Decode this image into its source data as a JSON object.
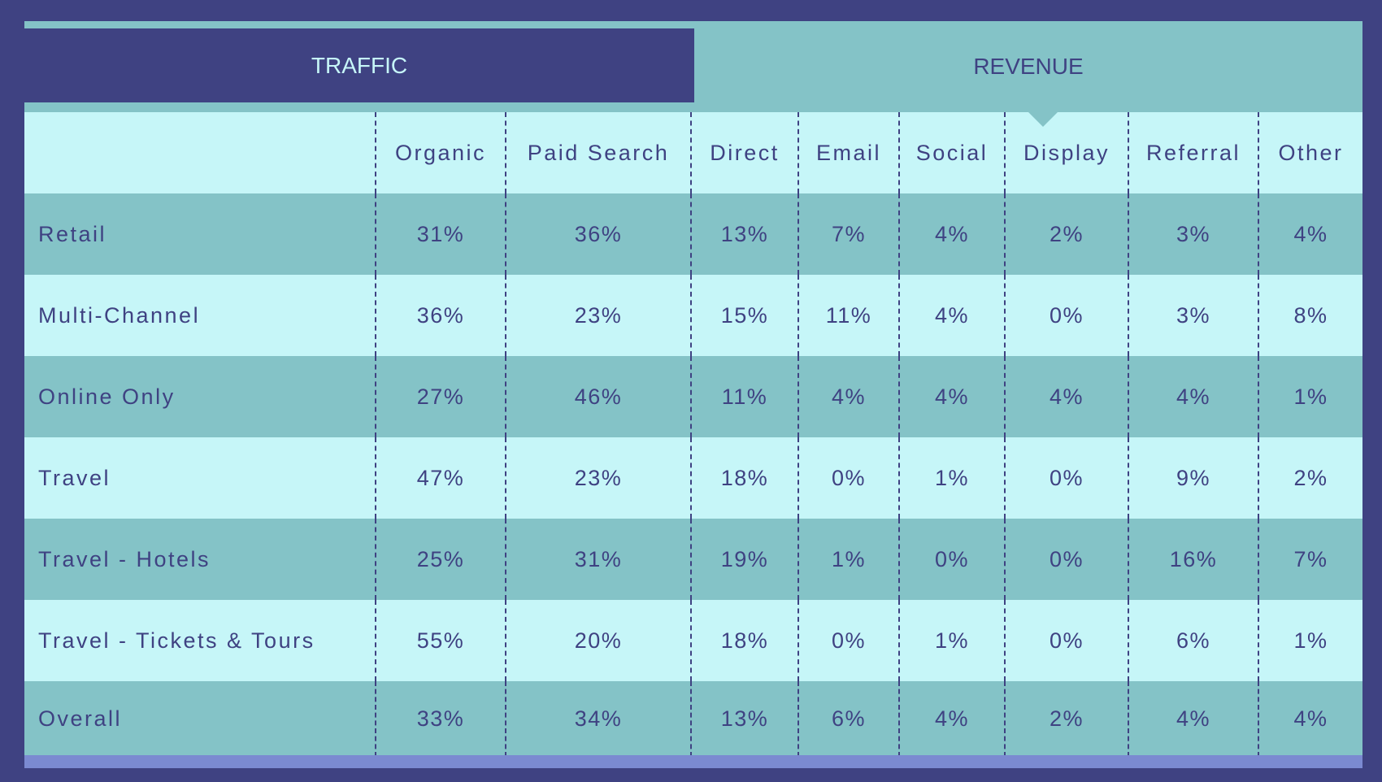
{
  "tabs": [
    {
      "label": "TRAFFIC",
      "active": true
    },
    {
      "label": "REVENUE",
      "active": false
    }
  ],
  "columns": [
    "",
    "Organic",
    "Paid  Search",
    "Direct",
    "Email",
    "Social",
    "Display",
    "Referral",
    "Other"
  ],
  "rows": [
    {
      "label": "Retail",
      "values": [
        "31%",
        "36%",
        "13%",
        "7%",
        "4%",
        "2%",
        "3%",
        "4%"
      ]
    },
    {
      "label": "Multi-Channel",
      "values": [
        "36%",
        "23%",
        "15%",
        "11%",
        "4%",
        "0%",
        "3%",
        "8%"
      ]
    },
    {
      "label": "Online  Only",
      "values": [
        "27%",
        "46%",
        "11%",
        "4%",
        "4%",
        "4%",
        "4%",
        "1%"
      ]
    },
    {
      "label": "Travel",
      "values": [
        "47%",
        "23%",
        "18%",
        "0%",
        "1%",
        "0%",
        "9%",
        "2%"
      ]
    },
    {
      "label": "Travel  -  Hotels",
      "values": [
        "25%",
        "31%",
        "19%",
        "1%",
        "0%",
        "0%",
        "16%",
        "7%"
      ]
    },
    {
      "label": "Travel  -  Tickets  &  Tours",
      "values": [
        "55%",
        "20%",
        "18%",
        "0%",
        "1%",
        "0%",
        "6%",
        "1%"
      ]
    },
    {
      "label": "Overall",
      "values": [
        "33%",
        "34%",
        "13%",
        "6%",
        "4%",
        "2%",
        "4%",
        "4%"
      ]
    }
  ],
  "colors": {
    "dark": "#3f4282",
    "teal": "#84c3c7",
    "light": "#c6f6f8",
    "accent_bar": "#7b8ad1"
  }
}
